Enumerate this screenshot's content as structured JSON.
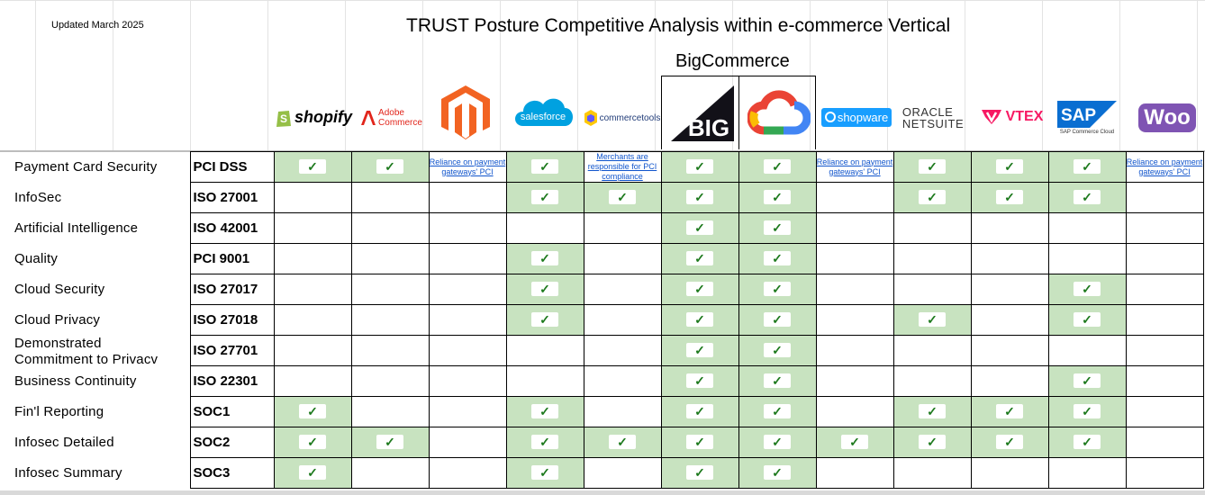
{
  "header": {
    "updated": "Updated March 2025",
    "title": "TRUST Posture Competitive Analysis within e-commerce Vertical",
    "highlight_vendor": "BigCommerce"
  },
  "vendors": [
    {
      "name": "Shopify",
      "logo_text": "shopify",
      "color": "#000000",
      "icon": "shopify-bag-icon",
      "icon_color": "#95bf47"
    },
    {
      "name": "Adobe Commerce",
      "logo_text": "Adobe\nCommerce",
      "color": "#e1251b",
      "icon": "adobe-a-icon"
    },
    {
      "name": "Magento",
      "logo_text": "",
      "color": "#f26322",
      "icon": "magento-icon"
    },
    {
      "name": "Salesforce",
      "logo_text": "salesforce",
      "color": "#00a1e0",
      "icon": "cloud-icon"
    },
    {
      "name": "commercetools",
      "logo_text": "commercetools",
      "color": "#213c78",
      "icon": "commercetools-icon"
    },
    {
      "name": "BigCommerce",
      "logo_text": "BIG",
      "color": "#121118",
      "icon": "bigcommerce-icon"
    },
    {
      "name": "Google Cloud",
      "logo_text": "",
      "color": "#4285f4",
      "icon": "google-cloud-icon"
    },
    {
      "name": "shopware",
      "logo_text": "shopware",
      "color": "#189eff",
      "icon": "shopware-icon"
    },
    {
      "name": "Oracle NetSuite",
      "logo_text": "ORACLE\nNETSUITE",
      "color": "#333333",
      "icon": "oracle-icon"
    },
    {
      "name": "VTEX",
      "logo_text": "VTEX",
      "color": "#f71963",
      "icon": "vtex-icon"
    },
    {
      "name": "SAP",
      "logo_text": "SAP",
      "sub": "SAP Commerce Cloud",
      "color": "#0a6ed1",
      "icon": "sap-icon"
    },
    {
      "name": "WooCommerce",
      "logo_text": "Woo",
      "color": "#7f54b3",
      "icon": "woo-icon"
    }
  ],
  "rows": [
    {
      "category": "Payment Card Security",
      "standard": "PCI DSS",
      "cells": [
        "c",
        "c",
        "n0",
        "c",
        "n1",
        "c",
        "c",
        "n0",
        "c",
        "c",
        "c",
        "n2"
      ]
    },
    {
      "category": "InfoSec",
      "standard": "ISO 27001",
      "cells": [
        "",
        "",
        "",
        "c",
        "c",
        "c",
        "c",
        "",
        "c",
        "c",
        "c",
        ""
      ]
    },
    {
      "category": "Artificial Intelligence",
      "standard": "ISO 42001",
      "cells": [
        "",
        "",
        "",
        "",
        "",
        "c",
        "c",
        "",
        "",
        "",
        "",
        ""
      ]
    },
    {
      "category": "Quality",
      "standard": "PCI 9001",
      "cells": [
        "",
        "",
        "",
        "c",
        "",
        "c",
        "c",
        "",
        "",
        "",
        "",
        ""
      ]
    },
    {
      "category": "Cloud Security",
      "standard": "ISO 27017",
      "cells": [
        "",
        "",
        "",
        "c",
        "",
        "c",
        "c",
        "",
        "",
        "",
        "c",
        ""
      ]
    },
    {
      "category": "Cloud Privacy",
      "standard": "ISO 27018",
      "cells": [
        "",
        "",
        "",
        "c",
        "",
        "c",
        "c",
        "",
        "c",
        "",
        "c",
        ""
      ]
    },
    {
      "category": "Demonstrated Commitment to Privacy",
      "category_lines": [
        "Demonstrated",
        "Commitment to Privacv"
      ],
      "standard": "ISO 27701",
      "cells": [
        "",
        "",
        "",
        "",
        "",
        "c",
        "c",
        "",
        "",
        "",
        "",
        ""
      ]
    },
    {
      "category": "Business Continuity",
      "standard": "ISO 22301",
      "cells": [
        "",
        "",
        "",
        "",
        "",
        "c",
        "c",
        "",
        "",
        "",
        "c",
        ""
      ]
    },
    {
      "category": "Fin'l Reporting",
      "standard": "SOC1",
      "cells": [
        "c",
        "",
        "",
        "c",
        "",
        "c",
        "c",
        "",
        "c",
        "c",
        "c",
        ""
      ]
    },
    {
      "category": "Infosec Detailed",
      "standard": "SOC2",
      "cells": [
        "c",
        "c",
        "",
        "c",
        "c",
        "c",
        "c",
        "c",
        "c",
        "c",
        "c",
        ""
      ]
    },
    {
      "category": "Infosec Summary",
      "standard": "SOC3",
      "cells": [
        "c",
        "",
        "",
        "c",
        "",
        "c",
        "c",
        "",
        "",
        "",
        "",
        ""
      ]
    }
  ],
  "notes": [
    "Reliance on payment gateways' PCI",
    "Merchants are responsible for PCI compliance",
    "Reliance on payment gateways' PCI"
  ],
  "check_symbol": "✓",
  "colors": {
    "green_fill": "#c8e3c0",
    "check": "#1e7a1e",
    "link": "#1155cc"
  }
}
